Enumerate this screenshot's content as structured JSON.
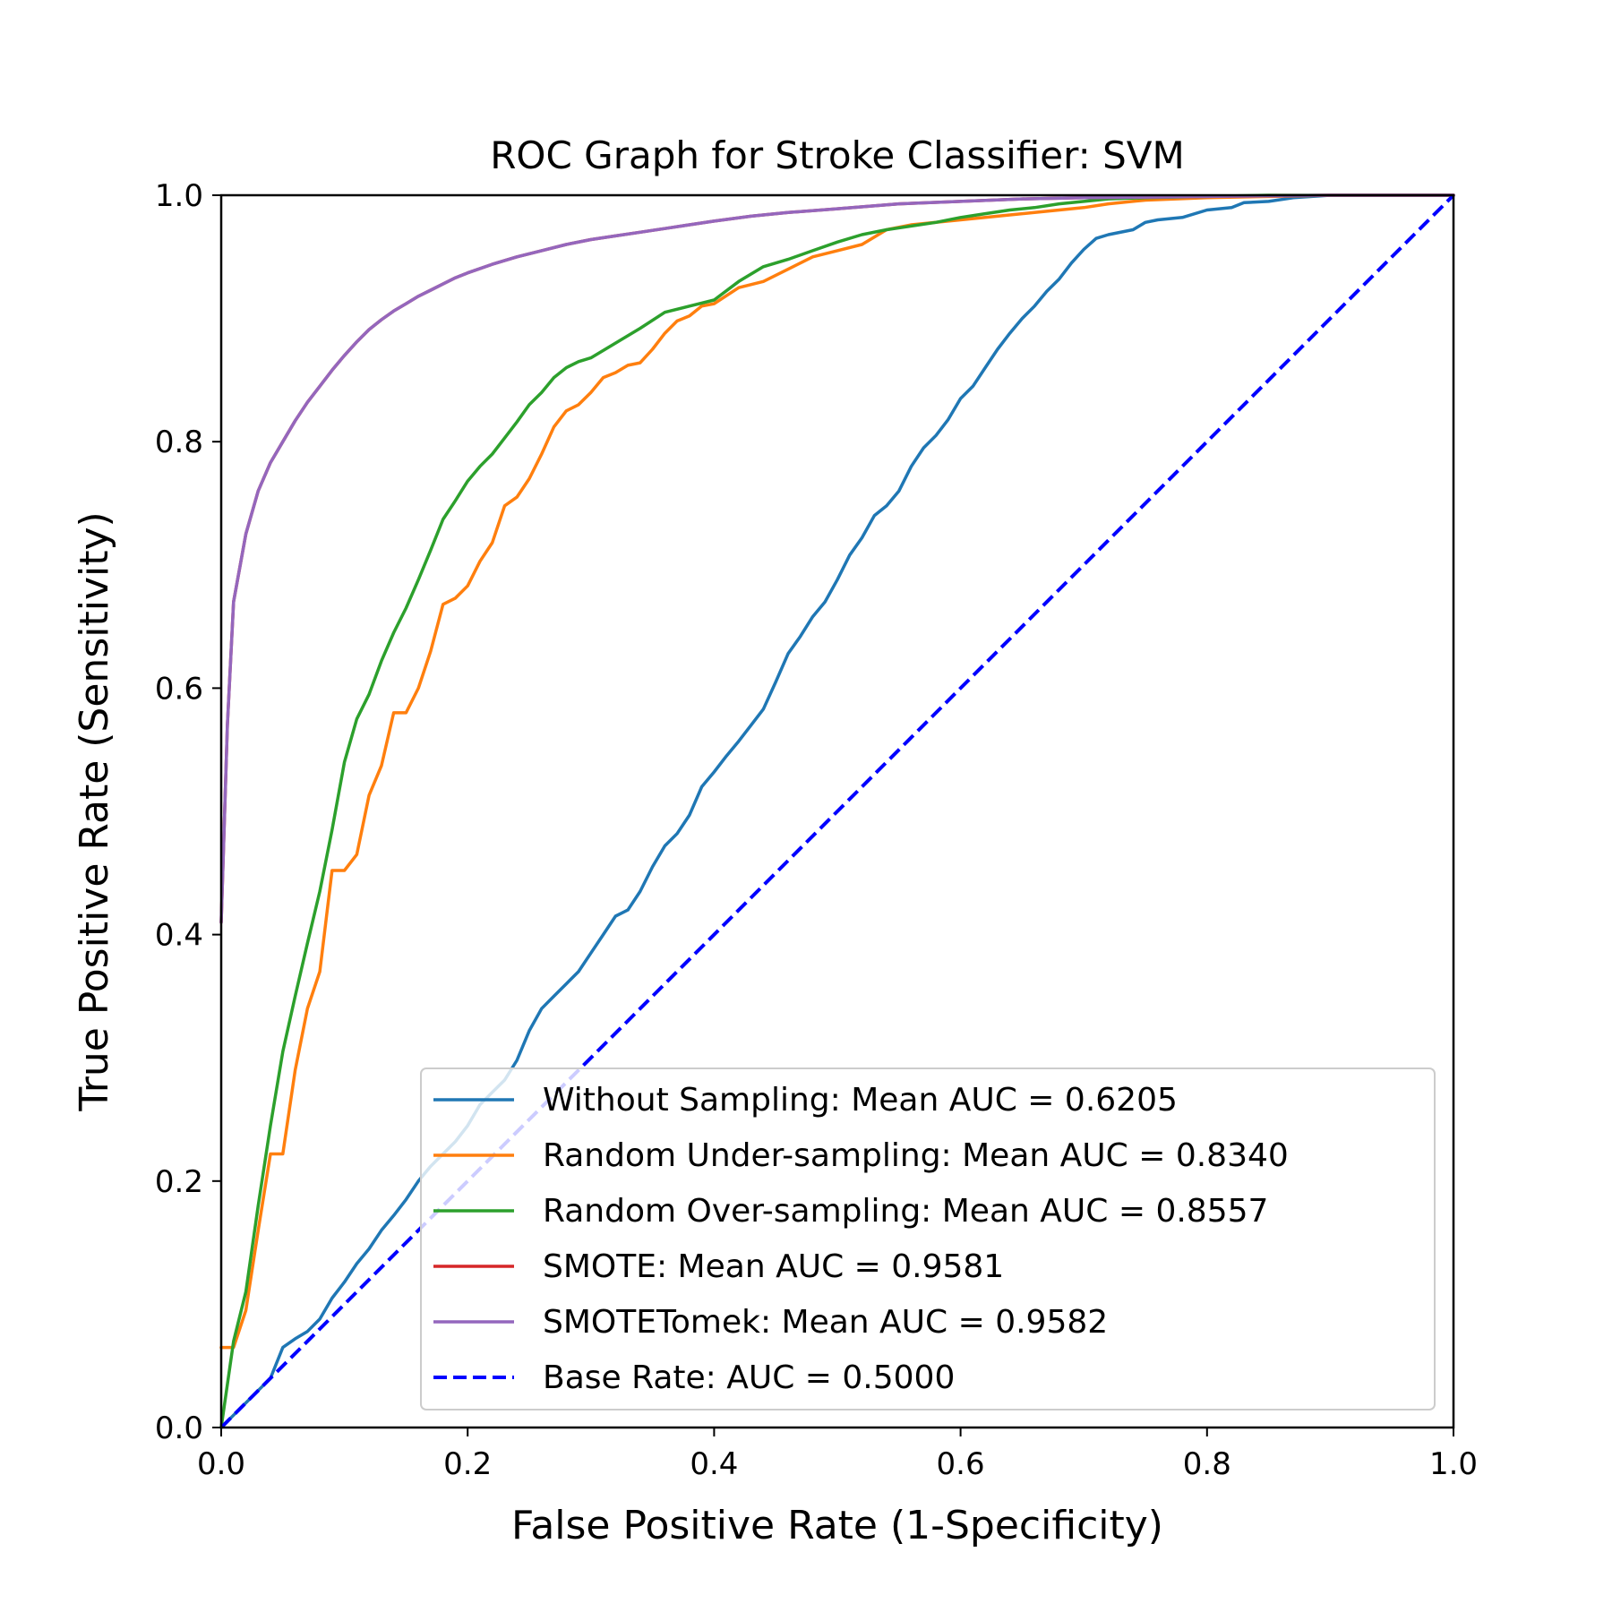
{
  "chart_data": {
    "type": "line",
    "title": "ROC Graph for Stroke Classifier: SVM",
    "xlabel": "False Positive Rate (1-Specificity)",
    "ylabel": "True Positive Rate (Sensitivity)",
    "xlim": [
      0,
      1
    ],
    "ylim": [
      0,
      1
    ],
    "xticks": [
      "0.0",
      "0.2",
      "0.4",
      "0.6",
      "0.8",
      "1.0"
    ],
    "yticks": [
      "0.0",
      "0.2",
      "0.4",
      "0.6",
      "0.8",
      "1.0"
    ],
    "grid": false,
    "legend_position": "lower-right",
    "series": [
      {
        "name": "Without Sampling: Mean AUC = 0.6205",
        "color": "#1f77b4",
        "dash": false,
        "x": [
          0,
          0.01,
          0.02,
          0.03,
          0.04,
          0.05,
          0.06,
          0.07,
          0.08,
          0.09,
          0.1,
          0.11,
          0.12,
          0.13,
          0.14,
          0.15,
          0.16,
          0.17,
          0.18,
          0.19,
          0.2,
          0.21,
          0.22,
          0.23,
          0.24,
          0.25,
          0.26,
          0.27,
          0.28,
          0.29,
          0.3,
          0.31,
          0.32,
          0.33,
          0.34,
          0.35,
          0.36,
          0.37,
          0.38,
          0.39,
          0.4,
          0.41,
          0.42,
          0.43,
          0.44,
          0.45,
          0.46,
          0.47,
          0.48,
          0.49,
          0.5,
          0.51,
          0.52,
          0.53,
          0.54,
          0.55,
          0.56,
          0.57,
          0.58,
          0.59,
          0.6,
          0.61,
          0.62,
          0.63,
          0.64,
          0.65,
          0.66,
          0.67,
          0.68,
          0.69,
          0.7,
          0.71,
          0.72,
          0.74,
          0.75,
          0.76,
          0.78,
          0.8,
          0.82,
          0.83,
          0.85,
          0.87,
          0.9,
          1.0
        ],
        "y": [
          0,
          0.01,
          0.02,
          0.03,
          0.04,
          0.065,
          0.072,
          0.078,
          0.088,
          0.105,
          0.118,
          0.133,
          0.145,
          0.16,
          0.172,
          0.185,
          0.2,
          0.212,
          0.222,
          0.232,
          0.245,
          0.262,
          0.272,
          0.282,
          0.298,
          0.322,
          0.34,
          0.35,
          0.36,
          0.37,
          0.385,
          0.4,
          0.415,
          0.42,
          0.435,
          0.455,
          0.472,
          0.482,
          0.497,
          0.52,
          0.532,
          0.545,
          0.557,
          0.57,
          0.583,
          0.605,
          0.628,
          0.642,
          0.658,
          0.67,
          0.688,
          0.708,
          0.722,
          0.74,
          0.748,
          0.76,
          0.78,
          0.795,
          0.805,
          0.818,
          0.835,
          0.845,
          0.86,
          0.875,
          0.888,
          0.9,
          0.91,
          0.922,
          0.932,
          0.945,
          0.956,
          0.965,
          0.968,
          0.972,
          0.978,
          0.98,
          0.982,
          0.988,
          0.99,
          0.994,
          0.995,
          0.998,
          1.0,
          1.0
        ]
      },
      {
        "name": "Random Under-sampling: Mean AUC = 0.8340",
        "color": "#ff7f0e",
        "dash": false,
        "x": [
          0,
          0.01,
          0.02,
          0.03,
          0.04,
          0.05,
          0.06,
          0.07,
          0.08,
          0.09,
          0.1,
          0.11,
          0.12,
          0.13,
          0.14,
          0.15,
          0.16,
          0.17,
          0.18,
          0.19,
          0.2,
          0.21,
          0.22,
          0.23,
          0.24,
          0.25,
          0.26,
          0.27,
          0.28,
          0.29,
          0.3,
          0.31,
          0.32,
          0.33,
          0.34,
          0.35,
          0.36,
          0.37,
          0.38,
          0.39,
          0.4,
          0.42,
          0.44,
          0.46,
          0.48,
          0.5,
          0.52,
          0.54,
          0.56,
          0.58,
          0.6,
          0.62,
          0.64,
          0.66,
          0.68,
          0.7,
          0.72,
          0.75,
          0.8,
          0.85,
          0.9,
          1.0
        ],
        "y": [
          0.065,
          0.065,
          0.095,
          0.16,
          0.222,
          0.222,
          0.29,
          0.34,
          0.37,
          0.452,
          0.452,
          0.465,
          0.513,
          0.537,
          0.58,
          0.58,
          0.6,
          0.63,
          0.668,
          0.673,
          0.683,
          0.703,
          0.718,
          0.748,
          0.755,
          0.77,
          0.79,
          0.812,
          0.825,
          0.83,
          0.84,
          0.852,
          0.856,
          0.862,
          0.864,
          0.875,
          0.888,
          0.898,
          0.902,
          0.91,
          0.912,
          0.925,
          0.93,
          0.94,
          0.95,
          0.955,
          0.96,
          0.972,
          0.976,
          0.978,
          0.98,
          0.982,
          0.984,
          0.986,
          0.988,
          0.99,
          0.993,
          0.996,
          0.998,
          0.999,
          1.0,
          1.0
        ]
      },
      {
        "name": "Random Over-sampling: Mean AUC = 0.8557",
        "color": "#2ca02c",
        "dash": false,
        "x": [
          0,
          0.01,
          0.02,
          0.03,
          0.04,
          0.05,
          0.06,
          0.07,
          0.08,
          0.09,
          0.1,
          0.11,
          0.12,
          0.13,
          0.14,
          0.15,
          0.16,
          0.17,
          0.18,
          0.19,
          0.2,
          0.21,
          0.22,
          0.23,
          0.24,
          0.25,
          0.26,
          0.27,
          0.28,
          0.29,
          0.3,
          0.32,
          0.34,
          0.36,
          0.38,
          0.4,
          0.42,
          0.44,
          0.46,
          0.48,
          0.5,
          0.52,
          0.54,
          0.56,
          0.58,
          0.6,
          0.62,
          0.64,
          0.66,
          0.68,
          0.7,
          0.72,
          0.75,
          0.8,
          0.85,
          0.9,
          1.0
        ],
        "y": [
          0,
          0.07,
          0.11,
          0.18,
          0.245,
          0.305,
          0.35,
          0.393,
          0.435,
          0.485,
          0.54,
          0.575,
          0.595,
          0.622,
          0.645,
          0.665,
          0.688,
          0.712,
          0.737,
          0.752,
          0.768,
          0.78,
          0.79,
          0.803,
          0.816,
          0.83,
          0.84,
          0.852,
          0.86,
          0.865,
          0.868,
          0.88,
          0.892,
          0.905,
          0.91,
          0.915,
          0.93,
          0.942,
          0.948,
          0.955,
          0.962,
          0.968,
          0.972,
          0.975,
          0.978,
          0.982,
          0.985,
          0.988,
          0.99,
          0.993,
          0.995,
          0.997,
          0.998,
          0.999,
          1.0,
          1.0,
          1.0
        ]
      },
      {
        "name": "SMOTE: Mean AUC = 0.9581",
        "color": "#d62728",
        "dash": false,
        "x": [
          0,
          0.005,
          0.01,
          0.02,
          0.03,
          0.04,
          0.05,
          0.06,
          0.07,
          0.08,
          0.09,
          0.1,
          0.11,
          0.12,
          0.13,
          0.14,
          0.15,
          0.16,
          0.17,
          0.18,
          0.19,
          0.2,
          0.22,
          0.24,
          0.26,
          0.28,
          0.3,
          0.32,
          0.34,
          0.36,
          0.38,
          0.4,
          0.43,
          0.46,
          0.5,
          0.55,
          0.6,
          0.65,
          0.7,
          0.8,
          0.9,
          1.0
        ],
        "y": [
          0.41,
          0.57,
          0.67,
          0.725,
          0.76,
          0.783,
          0.8,
          0.817,
          0.832,
          0.845,
          0.858,
          0.87,
          0.881,
          0.891,
          0.899,
          0.906,
          0.912,
          0.918,
          0.923,
          0.928,
          0.933,
          0.937,
          0.944,
          0.95,
          0.955,
          0.96,
          0.964,
          0.967,
          0.97,
          0.973,
          0.976,
          0.979,
          0.983,
          0.986,
          0.989,
          0.993,
          0.995,
          0.997,
          0.998,
          0.999,
          1.0,
          1.0
        ]
      },
      {
        "name": "SMOTETomek: Mean AUC = 0.9582",
        "color": "#9467bd",
        "dash": false,
        "x": [
          0,
          0.005,
          0.01,
          0.02,
          0.03,
          0.04,
          0.05,
          0.06,
          0.07,
          0.08,
          0.09,
          0.1,
          0.11,
          0.12,
          0.13,
          0.14,
          0.15,
          0.16,
          0.17,
          0.18,
          0.19,
          0.2,
          0.22,
          0.24,
          0.26,
          0.28,
          0.3,
          0.32,
          0.34,
          0.36,
          0.38,
          0.4,
          0.43,
          0.46,
          0.5,
          0.55,
          0.6,
          0.65,
          0.7,
          0.8,
          0.9,
          1.0
        ],
        "y": [
          0.41,
          0.57,
          0.67,
          0.725,
          0.76,
          0.783,
          0.8,
          0.817,
          0.832,
          0.845,
          0.858,
          0.87,
          0.881,
          0.891,
          0.899,
          0.906,
          0.912,
          0.918,
          0.923,
          0.928,
          0.933,
          0.937,
          0.944,
          0.95,
          0.955,
          0.96,
          0.964,
          0.967,
          0.97,
          0.973,
          0.976,
          0.979,
          0.983,
          0.986,
          0.989,
          0.993,
          0.995,
          0.997,
          0.998,
          0.999,
          1.0,
          1.0
        ]
      },
      {
        "name": "Base Rate: AUC = 0.5000",
        "color": "#0000ff",
        "dash": true,
        "x": [
          0,
          1
        ],
        "y": [
          0,
          1
        ]
      }
    ]
  }
}
